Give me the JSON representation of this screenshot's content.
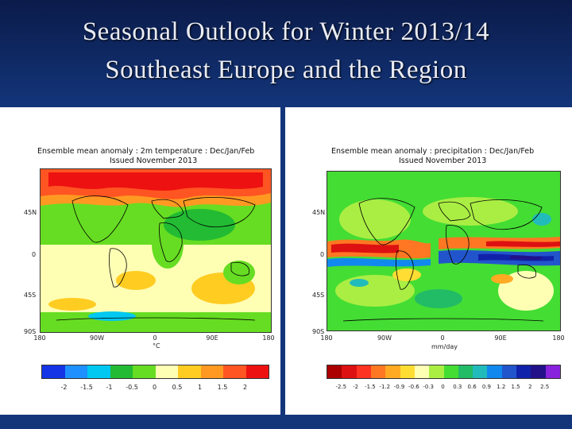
{
  "slide": {
    "title_line1": "Seasonal Outlook for Winter 2013/14",
    "title_line2": "Southeast Europe and the Region"
  },
  "temperature_panel": {
    "title_line1": "Ensemble mean anomaly : 2m temperature : Dec/Jan/Feb",
    "title_line2": "Issued November 2013",
    "lat_labels": [
      "45N",
      "0",
      "45S",
      "90S"
    ],
    "lon_labels": [
      "180",
      "90W",
      "0",
      "90E",
      "180"
    ],
    "unit": "°C",
    "colorbar_colors": [
      "#1434e6",
      "#1e90ff",
      "#00c8f0",
      "#22bb33",
      "#66dd22",
      "#ffffb4",
      "#ffcc22",
      "#ff9922",
      "#ff5522",
      "#ee1111"
    ],
    "colorbar_labels": [
      "-2",
      "-1.5",
      "-1",
      "-0.5",
      "0",
      "0.5",
      "1",
      "1.5",
      "2"
    ]
  },
  "precipitation_panel": {
    "title_line1": "Ensemble mean anomaly : precipitation : Dec/Jan/Feb",
    "title_line2": "Issued November 2013",
    "lat_labels": [
      "45N",
      "0",
      "45S",
      "90S"
    ],
    "lon_labels": [
      "180",
      "90W",
      "0",
      "90E",
      "180"
    ],
    "unit": "mm/day",
    "colorbar_colors": [
      "#aa0000",
      "#dd1111",
      "#ff3322",
      "#ff7722",
      "#ffaa22",
      "#ffdd33",
      "#ffffb4",
      "#aaee44",
      "#44dd33",
      "#22bb66",
      "#22bbbb",
      "#1188ee",
      "#2255cc",
      "#1122aa",
      "#221188",
      "#8822dd"
    ],
    "colorbar_labels": [
      "-2.5",
      "-2",
      "-1.5",
      "-1.2",
      "-0.9",
      "-0.6",
      "-0.3",
      "0",
      "0.3",
      "0.6",
      "0.9",
      "1.2",
      "1.5",
      "2",
      "2.5"
    ]
  }
}
